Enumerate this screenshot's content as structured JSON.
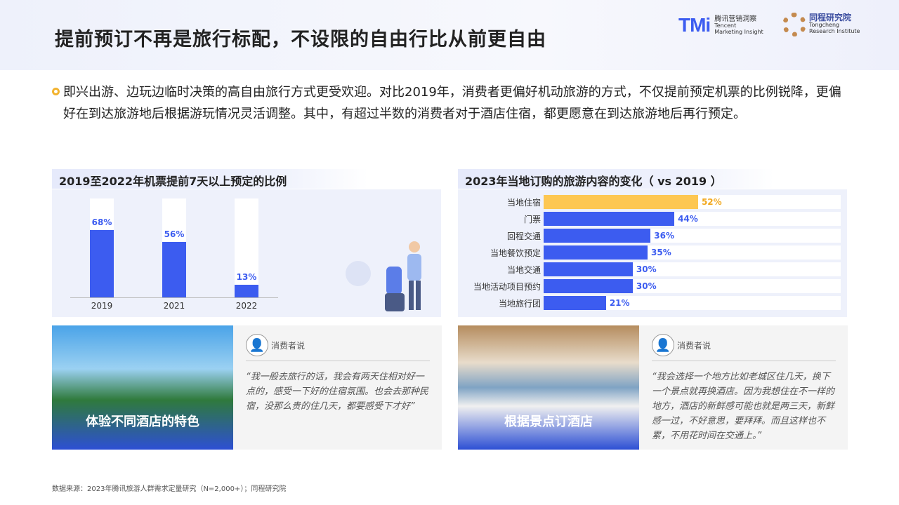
{
  "header": {
    "title": "提前预订不再是旅行标配，不设限的自由行比从前更自由",
    "logo_tmi": {
      "mark": "TMi",
      "cn": "腾讯营销洞察",
      "en1": "Tencent",
      "en2": "Marketing Insight"
    },
    "logo_tc": {
      "cn": "同程研究院",
      "en1": "Tongcheng",
      "en2": "Research Institute"
    }
  },
  "intro": "即兴出游、边玩边临时决策的高自由旅行方式更受欢迎。对比2019年，消费者更偏好机动旅游的方式，不仅提前预定机票的比例锐降，更偏好在到达旅游地后根据游玩情况灵活调整。其中，有超过半数的消费者对于酒店住宿，都更愿意在到达旅游地后再行预定。",
  "chart_data": [
    {
      "type": "bar",
      "title": "2019至2022年机票提前7天以上预定的比例",
      "categories": [
        "2019",
        "2021",
        "2022"
      ],
      "values": [
        68,
        56,
        13
      ],
      "labels": [
        "68%",
        "56%",
        "13%"
      ],
      "ylim": [
        0,
        100
      ],
      "color": "#3c5cf0"
    },
    {
      "type": "bar",
      "orientation": "horizontal",
      "title": "2023年当地订购的旅游内容的变化（ vs 2019 ）",
      "categories": [
        "当地住宿",
        "门票",
        "回程交通",
        "当地餐饮预定",
        "当地交通",
        "当地活动项目预约",
        "当地旅行团"
      ],
      "values": [
        52,
        44,
        36,
        35,
        30,
        30,
        21
      ],
      "labels": [
        "52%",
        "44%",
        "36%",
        "35%",
        "30%",
        "30%",
        "21%"
      ],
      "xlim": [
        0,
        100
      ],
      "colors": {
        "highlight": "#fdc752",
        "default": "#3c5cf0"
      }
    }
  ],
  "cards": [
    {
      "caption": "体验不同酒店的特色",
      "speaker": "消费者说",
      "quote": "“我一般去旅行的话，我会有两天住相对好一点的，感受一下好的住宿氛围。也会去那种民宿，没那么贵的住几天，都要感受下才好”"
    },
    {
      "caption": "根据景点订酒店",
      "speaker": "消费者说",
      "quote": "“我会选择一个地方比如老城区住几天，换下一个景点就再换酒店。因为我想住在不一样的地方，酒店的新鲜感可能也就是两三天，新鲜感一过，不好意思，要拜拜。而且这样也不累，不用花时间在交通上。”"
    }
  ],
  "source": "数据来源：2023年腾讯旅游人群需求定量研究（N=2,000+）；同程研究院"
}
